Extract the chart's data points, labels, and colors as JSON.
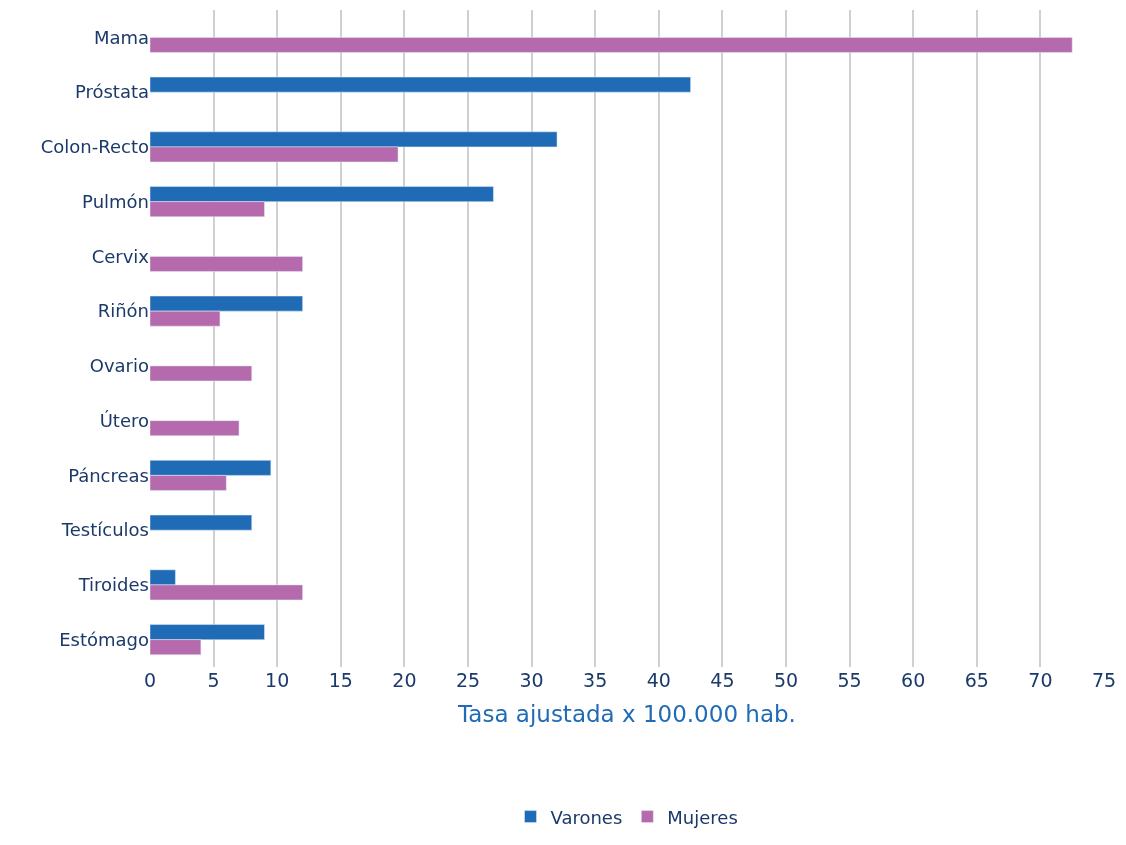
{
  "chart_data": {
    "type": "bar",
    "orientation": "horizontal",
    "xlabel": "Tasa ajustada x 100.000 hab.",
    "categories": [
      "Mama",
      "Próstata",
      "Colon-Recto",
      "Pulmón",
      "Cervix",
      "Riñón",
      "Ovario",
      "Útero",
      "Páncreas",
      "Testículos",
      "Tiroides",
      "Estómago"
    ],
    "series": [
      {
        "name": "Varones",
        "color": "#1f6bb5",
        "values": [
          null,
          42.5,
          32,
          27,
          null,
          12,
          null,
          null,
          9.5,
          8,
          2,
          9
        ]
      },
      {
        "name": "Mujeres",
        "color": "#b46aad",
        "values": [
          72.5,
          null,
          19.5,
          9,
          12,
          5.5,
          8,
          7,
          6,
          null,
          12,
          4
        ]
      }
    ],
    "xlim": [
      0,
      75
    ],
    "xticks": [
      0,
      5,
      10,
      15,
      20,
      25,
      30,
      35,
      40,
      45,
      50,
      55,
      60,
      65,
      70,
      75
    ],
    "grid": "x",
    "legend": "bottom"
  }
}
